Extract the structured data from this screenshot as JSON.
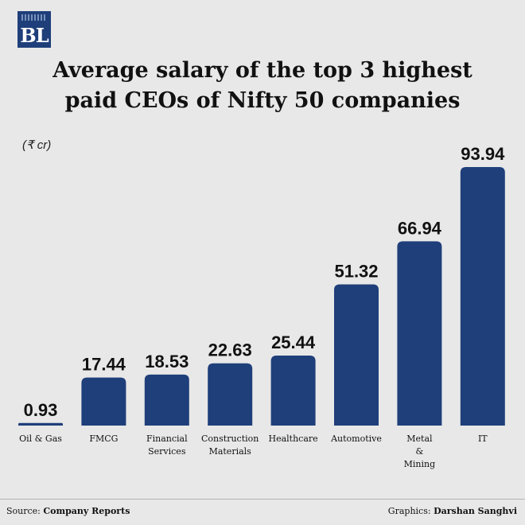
{
  "logo": {
    "text": "BL"
  },
  "title_lines": [
    "Average salary of the top 3 highest",
    "paid CEOs of Nifty 50 companies"
  ],
  "unit_label": "(₹ cr)",
  "chart_data": {
    "type": "bar",
    "title": "Average salary of the top 3 highest paid CEOs of Nifty 50 companies",
    "ylabel": "(₹ cr)",
    "xlabel": "",
    "categories": [
      [
        "Oil & Gas"
      ],
      [
        "FMCG"
      ],
      [
        "Financial",
        "Services"
      ],
      [
        "Construction",
        "Materials"
      ],
      [
        "Healthcare"
      ],
      [
        "Automotive"
      ],
      [
        "Metal",
        "&",
        "Mining"
      ],
      [
        "IT"
      ]
    ],
    "values": [
      0.93,
      17.44,
      18.53,
      22.63,
      25.44,
      51.32,
      66.94,
      93.94
    ],
    "value_labels": [
      "0.93",
      "17.44",
      "18.53",
      "22.63",
      "25.44",
      "51.32",
      "66.94",
      "93.94"
    ],
    "ylim": [
      0,
      93.94
    ],
    "grid": false,
    "bar_color": "#1f3f7a"
  },
  "footer": {
    "source_prefix": "Source: ",
    "source": "Company Reports",
    "credit_prefix": "Graphics: ",
    "credit": "Darshan Sanghvi"
  }
}
